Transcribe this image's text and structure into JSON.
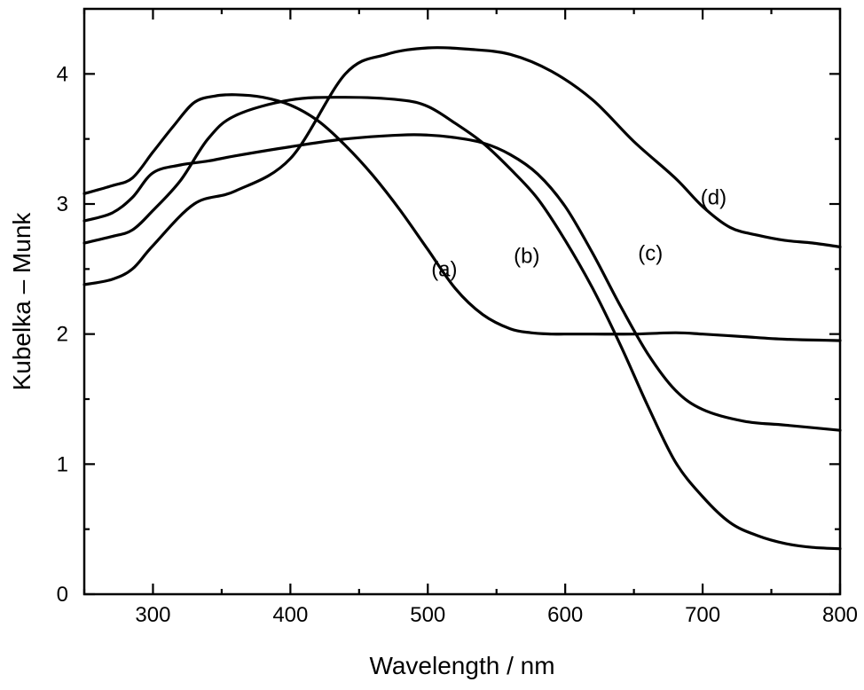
{
  "chart_data": {
    "type": "line",
    "title": "",
    "xlabel": "Wavelength / nm",
    "ylabel": "Kubelka – Munk",
    "xlim": [
      250,
      800
    ],
    "ylim": [
      0,
      4.5
    ],
    "x_ticks": [
      300,
      400,
      500,
      600,
      700,
      800
    ],
    "y_ticks": [
      0,
      1,
      2,
      3,
      4
    ],
    "grid": false,
    "legend": "none",
    "line_color": "#000000",
    "series": [
      {
        "name": "(a)",
        "x": [
          250,
          270,
          285,
          300,
          315,
          330,
          345,
          360,
          380,
          400,
          420,
          440,
          460,
          480,
          500,
          520,
          540,
          560,
          575,
          590,
          600,
          620,
          650,
          680,
          700,
          730,
          760,
          800
        ],
        "y": [
          3.08,
          3.14,
          3.2,
          3.4,
          3.6,
          3.78,
          3.83,
          3.84,
          3.82,
          3.76,
          3.64,
          3.45,
          3.22,
          2.95,
          2.65,
          2.35,
          2.15,
          2.04,
          2.01,
          2.0,
          2.0,
          2.0,
          2.0,
          2.01,
          2.0,
          1.98,
          1.96,
          1.95
        ]
      },
      {
        "name": "(b)",
        "x": [
          250,
          270,
          285,
          300,
          320,
          340,
          360,
          400,
          440,
          480,
          500,
          520,
          540,
          560,
          580,
          600,
          620,
          640,
          660,
          680,
          700,
          730,
          760,
          800
        ],
        "y": [
          2.87,
          2.93,
          3.05,
          3.24,
          3.3,
          3.33,
          3.37,
          3.44,
          3.5,
          3.53,
          3.53,
          3.51,
          3.47,
          3.38,
          3.23,
          2.98,
          2.62,
          2.22,
          1.85,
          1.57,
          1.42,
          1.33,
          1.3,
          1.26
        ]
      },
      {
        "name": "(c)",
        "x": [
          250,
          270,
          285,
          300,
          320,
          340,
          360,
          400,
          440,
          480,
          500,
          520,
          540,
          560,
          580,
          600,
          620,
          640,
          660,
          680,
          700,
          720,
          740,
          760,
          780,
          800
        ],
        "y": [
          2.7,
          2.75,
          2.8,
          2.95,
          3.18,
          3.5,
          3.68,
          3.8,
          3.82,
          3.8,
          3.75,
          3.62,
          3.47,
          3.27,
          3.04,
          2.72,
          2.35,
          1.92,
          1.45,
          1.02,
          0.75,
          0.55,
          0.45,
          0.39,
          0.36,
          0.35
        ]
      },
      {
        "name": "(d)",
        "x": [
          250,
          270,
          285,
          300,
          330,
          360,
          400,
          440,
          470,
          500,
          530,
          560,
          590,
          620,
          650,
          680,
          700,
          720,
          740,
          760,
          780,
          800
        ],
        "y": [
          2.38,
          2.42,
          2.5,
          2.68,
          3.0,
          3.1,
          3.35,
          4.0,
          4.15,
          4.2,
          4.19,
          4.15,
          4.02,
          3.8,
          3.48,
          3.2,
          2.98,
          2.82,
          2.76,
          2.72,
          2.7,
          2.67
        ]
      }
    ],
    "annotations": [
      {
        "text": "(a)",
        "x": 512,
        "y": 2.5
      },
      {
        "text": "(b)",
        "x": 572,
        "y": 2.6
      },
      {
        "text": "(c)",
        "x": 662,
        "y": 2.62
      },
      {
        "text": "(d)",
        "x": 708,
        "y": 3.05
      }
    ]
  }
}
